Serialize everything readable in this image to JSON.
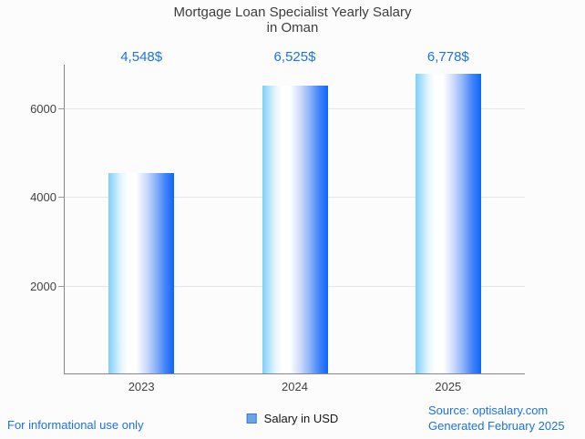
{
  "page": {
    "background": "#fcfcfc",
    "accent_blue": "#1a73e8",
    "footer_left": "For informational use only",
    "footer_right_line1": "Source: optisalary.com",
    "footer_right_line2": "Generated February 2025"
  },
  "chart_data": {
    "type": "bar",
    "title": "Mortgage Loan Specialist Yearly Salary",
    "subtitle": "in Oman",
    "categories": [
      "2023",
      "2024",
      "2025"
    ],
    "values": [
      4548,
      6525,
      6778
    ],
    "value_labels": [
      "4,548$",
      "6,525$",
      "6,778$"
    ],
    "series_name": "Salary in USD",
    "xlabel": "",
    "ylabel": "",
    "ylim": [
      0,
      6990
    ],
    "yticks": [
      2000,
      4000,
      6000
    ],
    "grid": true,
    "legend_position": "bottom-center",
    "bar_gradient": [
      "#7fd0f9",
      "#ffffff",
      "#0d66fd"
    ],
    "bar_color_main": "#0d66fd",
    "legend_marker_fill": "#68a4e9",
    "legend_marker_border": "#3c79cf",
    "gridline_color": "#e6e6e6",
    "axis_color": "#868686",
    "text_color": "#3d3d3d"
  }
}
